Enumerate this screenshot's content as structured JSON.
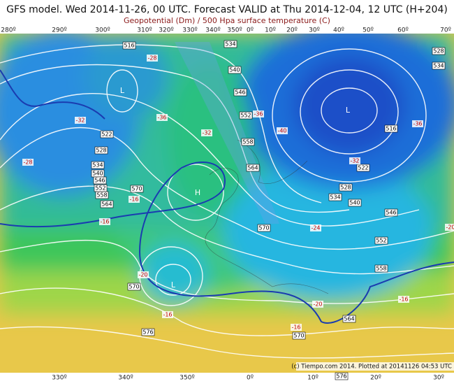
{
  "header": {
    "title": "GFS model. Wed 2014-11-26, 00 UTC. Forecast VALID at Thu 2014-12-04, 12 UTC (H+204)",
    "subtitle": "Geopotential (Dm) / 500 Hpa surface temperature (C)"
  },
  "top_longitudes": [
    "280º",
    "290º",
    "300º",
    "310º",
    "320º",
    "330º",
    "340º",
    "350º",
    "0º",
    "10º",
    "20º",
    "30º",
    "40º",
    "50º",
    "60º",
    "70º"
  ],
  "bottom_longitudes": [
    "330º",
    "340º",
    "350º",
    "0º",
    "10º",
    "20º",
    "30º"
  ],
  "geopotential_labels": [
    "516",
    "534",
    "540",
    "546",
    "552",
    "558",
    "564",
    "522",
    "528",
    "534",
    "540",
    "546",
    "552",
    "558",
    "564",
    "570",
    "570",
    "570",
    "576",
    "576",
    "570",
    "564",
    "558",
    "552",
    "546",
    "540",
    "534",
    "528",
    "522",
    "516",
    "528",
    "534"
  ],
  "temperature_labels": [
    "-32",
    "-36",
    "-32",
    "-28",
    "-36",
    "-40",
    "-36",
    "-32",
    "-16",
    "-16",
    "-20",
    "-16",
    "-16",
    "-20",
    "-24",
    "-16",
    "-20",
    "-28"
  ],
  "pressure_centers": [
    "L",
    "H",
    "L",
    "L"
  ],
  "credit": "(c) Tiempo.com 2014. Plotted at 20141126 04:53 UTC"
}
